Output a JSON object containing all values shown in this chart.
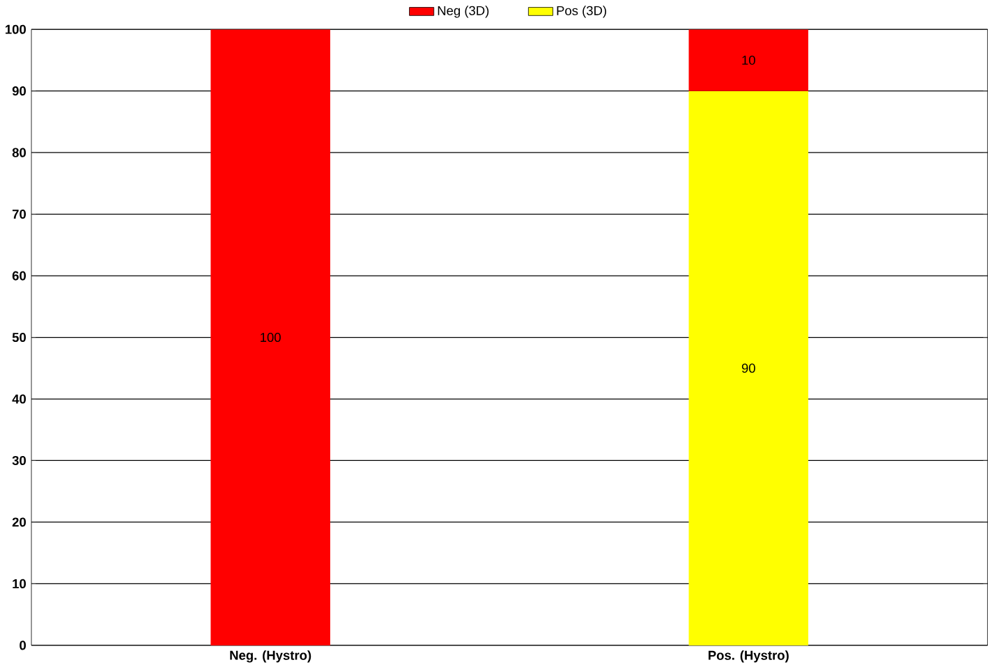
{
  "chart_data": {
    "type": "bar",
    "stacked": true,
    "categories": [
      "Neg. (Hystro)",
      "Pos. (Hystro)"
    ],
    "series": [
      {
        "name": "Pos (3D)",
        "color": "#ffff00",
        "values": [
          null,
          90
        ]
      },
      {
        "name": "Neg (3D)",
        "color": "#ff0000",
        "values": [
          100,
          10
        ]
      }
    ],
    "ylim": [
      0,
      100
    ],
    "yticks": [
      0,
      10,
      20,
      30,
      40,
      50,
      60,
      70,
      80,
      90,
      100
    ],
    "grid": "y",
    "legend": "top",
    "data_labels": true
  }
}
